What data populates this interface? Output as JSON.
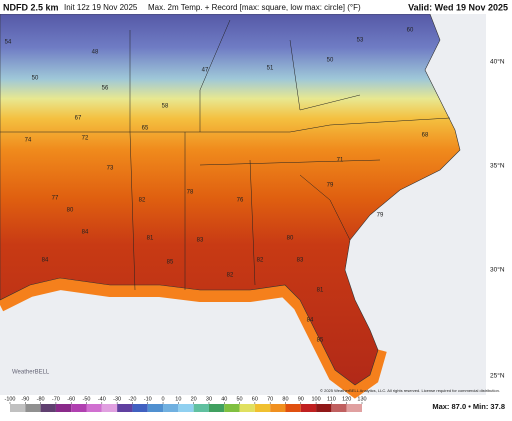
{
  "header": {
    "model": "NDFD 2.5 km",
    "init": "Init 12z 19 Nov 2025",
    "product": "Max. 2m Temp. + Record [max: square, low max: circle] (°F)",
    "valid": "Valid: Wed 19 Nov 2025"
  },
  "latitudes": [
    "40°N",
    "35°N",
    "30°N",
    "25°N"
  ],
  "map_values": [
    54,
    50,
    48,
    47,
    51,
    50,
    53,
    60,
    56,
    58,
    67,
    65,
    72,
    74,
    73,
    71,
    68,
    77,
    78,
    76,
    80,
    82,
    84,
    83,
    82,
    85,
    84,
    81,
    80,
    79,
    84,
    83,
    85,
    82,
    81,
    79
  ],
  "colorbar": {
    "ticks": [
      -100,
      -90,
      -80,
      -70,
      -60,
      -50,
      -40,
      -30,
      -20,
      -10,
      0,
      10,
      20,
      30,
      40,
      50,
      60,
      70,
      80,
      90,
      100,
      110,
      120,
      130
    ]
  },
  "stats": "Max: 87.0 • Min: 37.8",
  "copyright": "© 2025 WeatherBELL Analytics, LLC. All rights reserved. License required for commercial distribution.",
  "logo": "WeatherBELL"
}
